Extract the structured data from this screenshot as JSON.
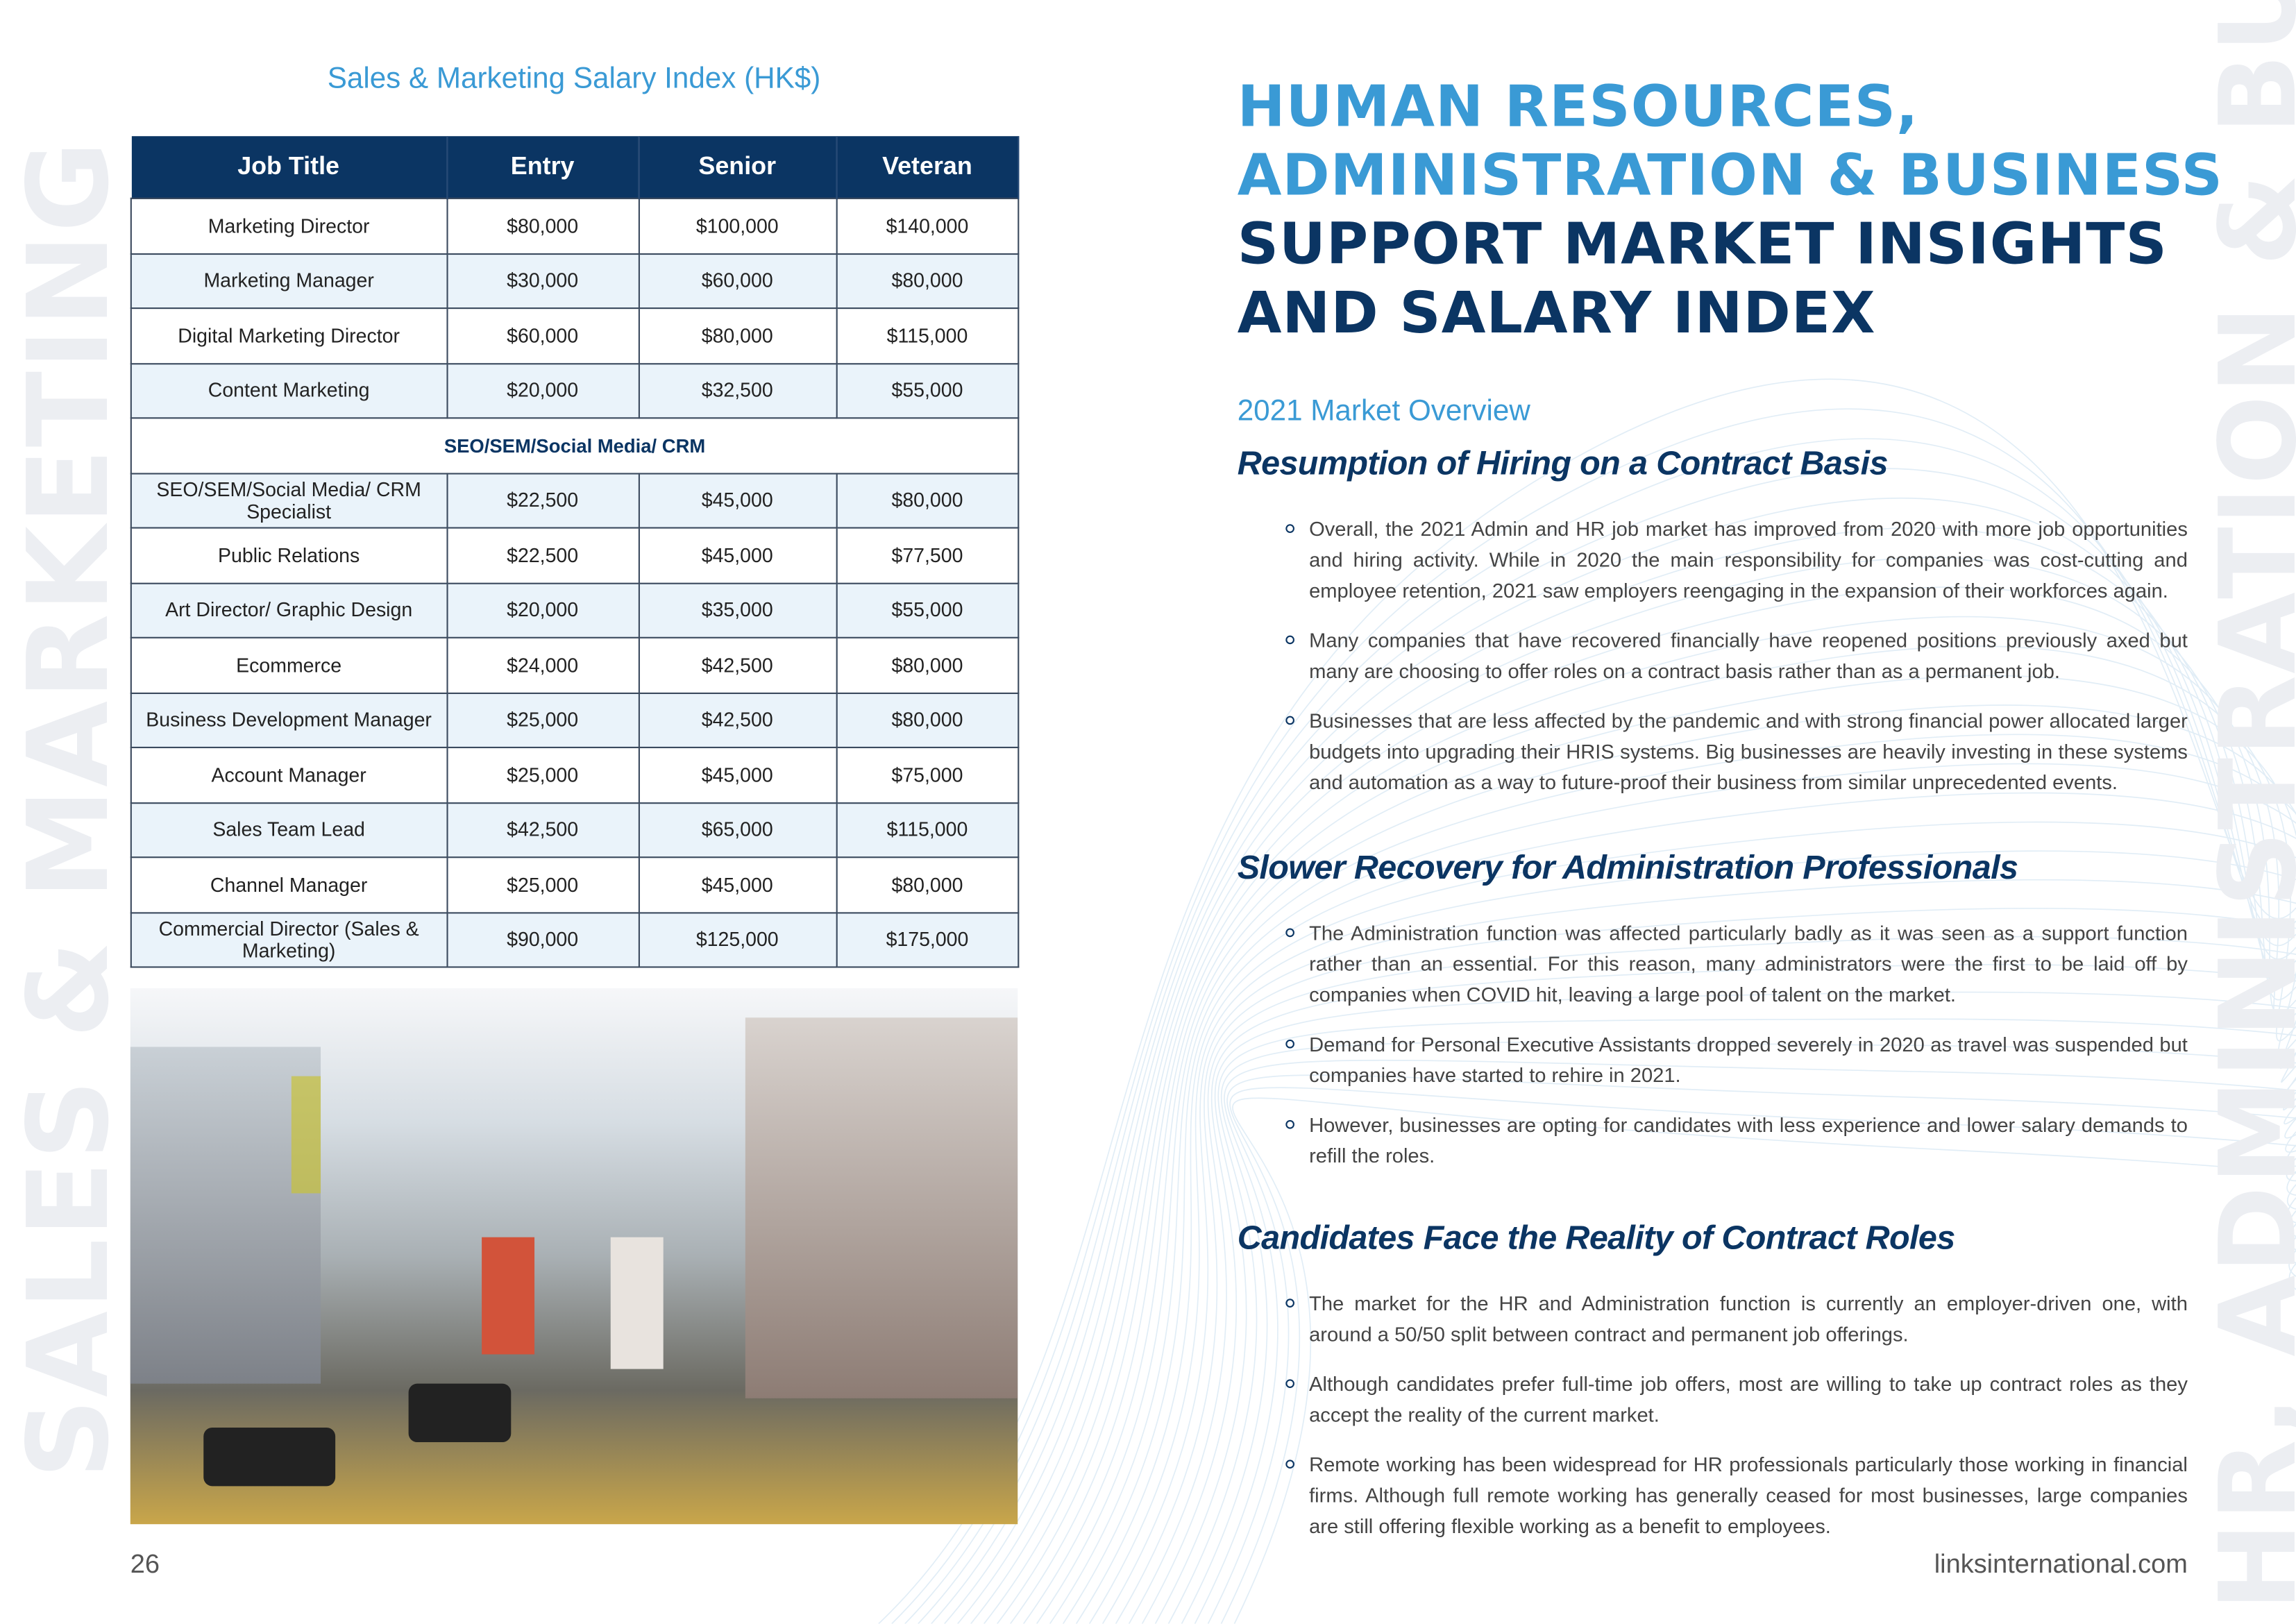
{
  "left_page": {
    "watermark": "SALES & MARKETING",
    "table_title": "Sales & Marketing Salary Index (HK$)",
    "columns": [
      "Job Title",
      "Entry",
      "Senior",
      "Veteran"
    ],
    "rows": [
      [
        "Marketing Director",
        "$80,000",
        "$100,000",
        "$140,000"
      ],
      [
        "Marketing Manager",
        "$30,000",
        "$60,000",
        "$80,000"
      ],
      [
        "Digital Marketing Director",
        "$60,000",
        "$80,000",
        "$115,000"
      ],
      [
        "Content Marketing",
        "$20,000",
        "$32,500",
        "$55,000"
      ],
      [
        "SEO/SEM/Social Media/ CRM"
      ],
      [
        "SEO/SEM/Social Media/ CRM Specialist",
        "$22,500",
        "$45,000",
        "$80,000"
      ],
      [
        "Public Relations",
        "$22,500",
        "$45,000",
        "$77,500"
      ],
      [
        "Art Director/ Graphic Design",
        "$20,000",
        "$35,000",
        "$55,000"
      ],
      [
        "Ecommerce",
        "$24,000",
        "$42,500",
        "$80,000"
      ],
      [
        "Business Development Manager",
        "$25,000",
        "$42,500",
        "$80,000"
      ],
      [
        "Account Manager",
        "$25,000",
        "$45,000",
        "$75,000"
      ],
      [
        "Sales Team Lead",
        "$42,500",
        "$65,000",
        "$115,000"
      ],
      [
        "Channel Manager",
        "$25,000",
        "$45,000",
        "$80,000"
      ],
      [
        "Commercial Director (Sales & Marketing)",
        "$90,000",
        "$125,000",
        "$175,000"
      ]
    ],
    "page_number": "26"
  },
  "right_page": {
    "watermark": "HR, ADMINISTRATION & BUSINESS",
    "title_lines": [
      "HUMAN RESOURCES,",
      "ADMINISTRATION & BUSINESS",
      "SUPPORT MARKET INSIGHTS",
      "AND SALARY INDEX"
    ],
    "overview": "2021 Market Overview",
    "sections": [
      {
        "heading": "Resumption of Hiring on a Contract Basis",
        "bullets": [
          "Overall, the 2021 Admin and HR job market has improved from 2020 with more job opportunities and hiring activity. While in 2020 the main responsibility for companies was cost-cutting and employee retention, 2021 saw employers reengaging in the expansion of their workforces again.",
          "Many companies that have recovered financially have reopened positions previously axed but many are choosing to offer roles on a contract basis rather than as a permanent job.",
          "Businesses that are less affected by the pandemic and with strong financial power allocated larger budgets into upgrading their HRIS systems. Big businesses are heavily investing in these systems and automation as a way to future-proof their business from similar unprecedented events."
        ]
      },
      {
        "heading": "Slower Recovery for Administration Professionals",
        "bullets": [
          "The Administration function was affected particularly badly as it was seen as a support function rather than an essential. For this reason, many administrators were the first to be laid off by companies when COVID hit, leaving a large pool of talent on the market.",
          "Demand for Personal Executive Assistants dropped severely in 2020 as travel was suspended but companies have started to rehire in 2021.",
          "However, businesses are opting for candidates with less experience and lower salary demands to refill the roles."
        ]
      },
      {
        "heading": "Candidates Face the Reality of Contract Roles",
        "bullets": [
          "The market for the HR and Administration function is currently an employer-driven one, with around a 50/50 split between contract and permanent job offerings.",
          "Although candidates prefer full-time job offers, most are willing to take up contract roles as they accept the reality of the current market.",
          "Remote working has been widespread for HR professionals particularly those working in financial firms. Although full remote working has generally ceased for most businesses, large companies are still offering flexible working as a benefit to employees."
        ]
      }
    ],
    "footer_url": "linksinternational.com"
  },
  "colors": {
    "navy": "#0b3563",
    "blue": "#3a9ad5",
    "row_alt": "#eaf3fa"
  }
}
